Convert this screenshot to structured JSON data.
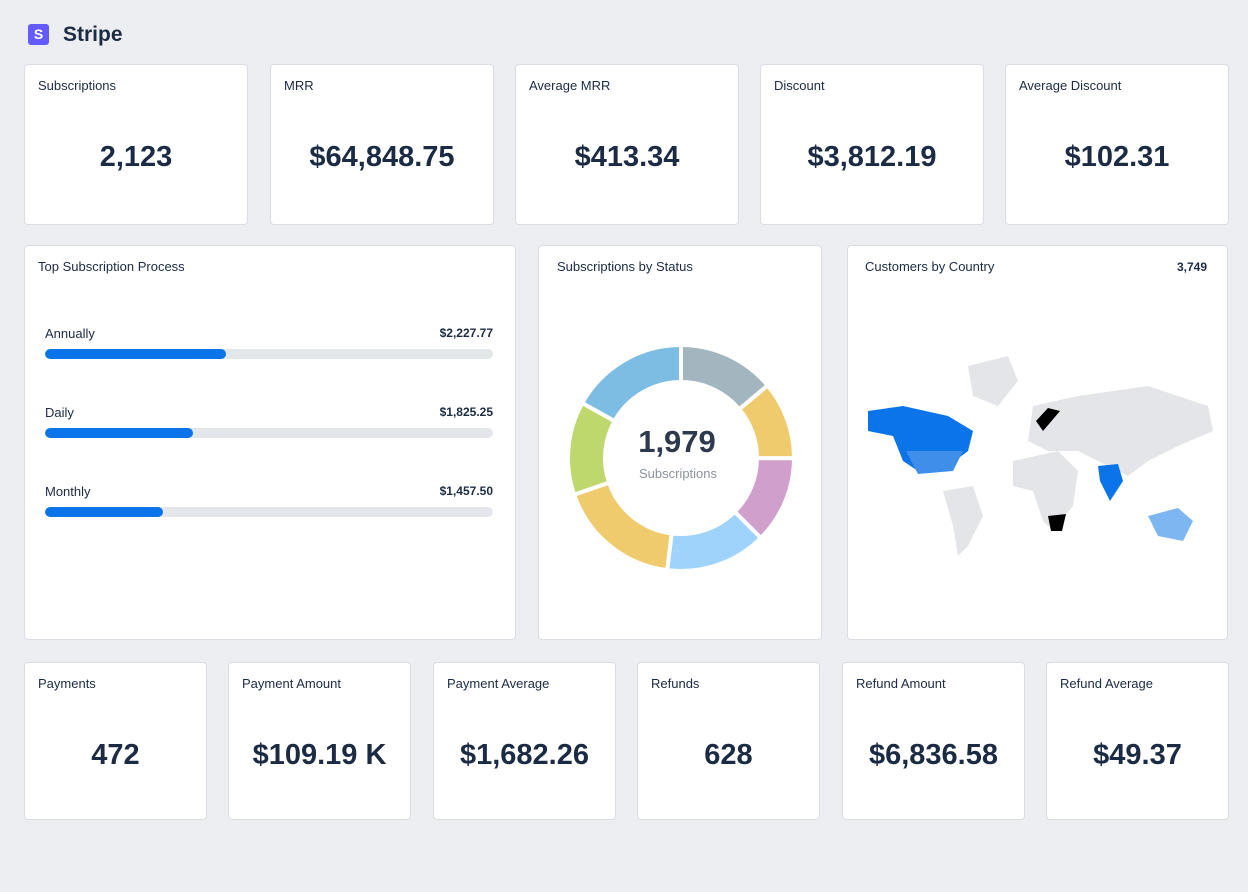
{
  "header": {
    "logo": "S",
    "title": "Stripe"
  },
  "top_stats": [
    {
      "title": "Subscriptions",
      "value": "2,123"
    },
    {
      "title": "MRR",
      "value": "$64,848.75"
    },
    {
      "title": "Average MRR",
      "value": "$413.34"
    },
    {
      "title": "Discount",
      "value": "$3,812.19"
    },
    {
      "title": "Average Discount",
      "value": "$102.31"
    }
  ],
  "process": {
    "title": "Top Subscription Process",
    "items": [
      {
        "label": "Annually",
        "value": 2227.77,
        "value_label": "$2,227.77"
      },
      {
        "label": "Daily",
        "value": 1825.25,
        "value_label": "$1,825.25"
      },
      {
        "label": "Monthly",
        "value": 1457.5,
        "value_label": "$1,457.50"
      }
    ]
  },
  "status": {
    "title": "Subscriptions by Status",
    "total": "1,979",
    "total_label": "Subscriptions",
    "segments": [
      {
        "value": 275,
        "color": "#a3b6bf"
      },
      {
        "value": 220,
        "color": "#efcb6e"
      },
      {
        "value": 247,
        "color": "#d19fcb"
      },
      {
        "value": 286,
        "color": "#9fd3fb"
      },
      {
        "value": 352,
        "color": "#efcb6e"
      },
      {
        "value": 264,
        "color": "#bfd86e"
      },
      {
        "value": 335,
        "color": "#7dbde4"
      }
    ]
  },
  "countries": {
    "title": "Customers by Country",
    "total": "3,749"
  },
  "bottom_stats": [
    {
      "title": "Payments",
      "value": "472"
    },
    {
      "title": "Payment Amount",
      "value": "$109.19 K"
    },
    {
      "title": "Payment Average",
      "value": "$1,682.26"
    },
    {
      "title": "Refunds",
      "value": "628"
    },
    {
      "title": "Refund Amount",
      "value": "$6,836.58"
    },
    {
      "title": "Refund Average",
      "value": "$49.37"
    }
  ]
}
